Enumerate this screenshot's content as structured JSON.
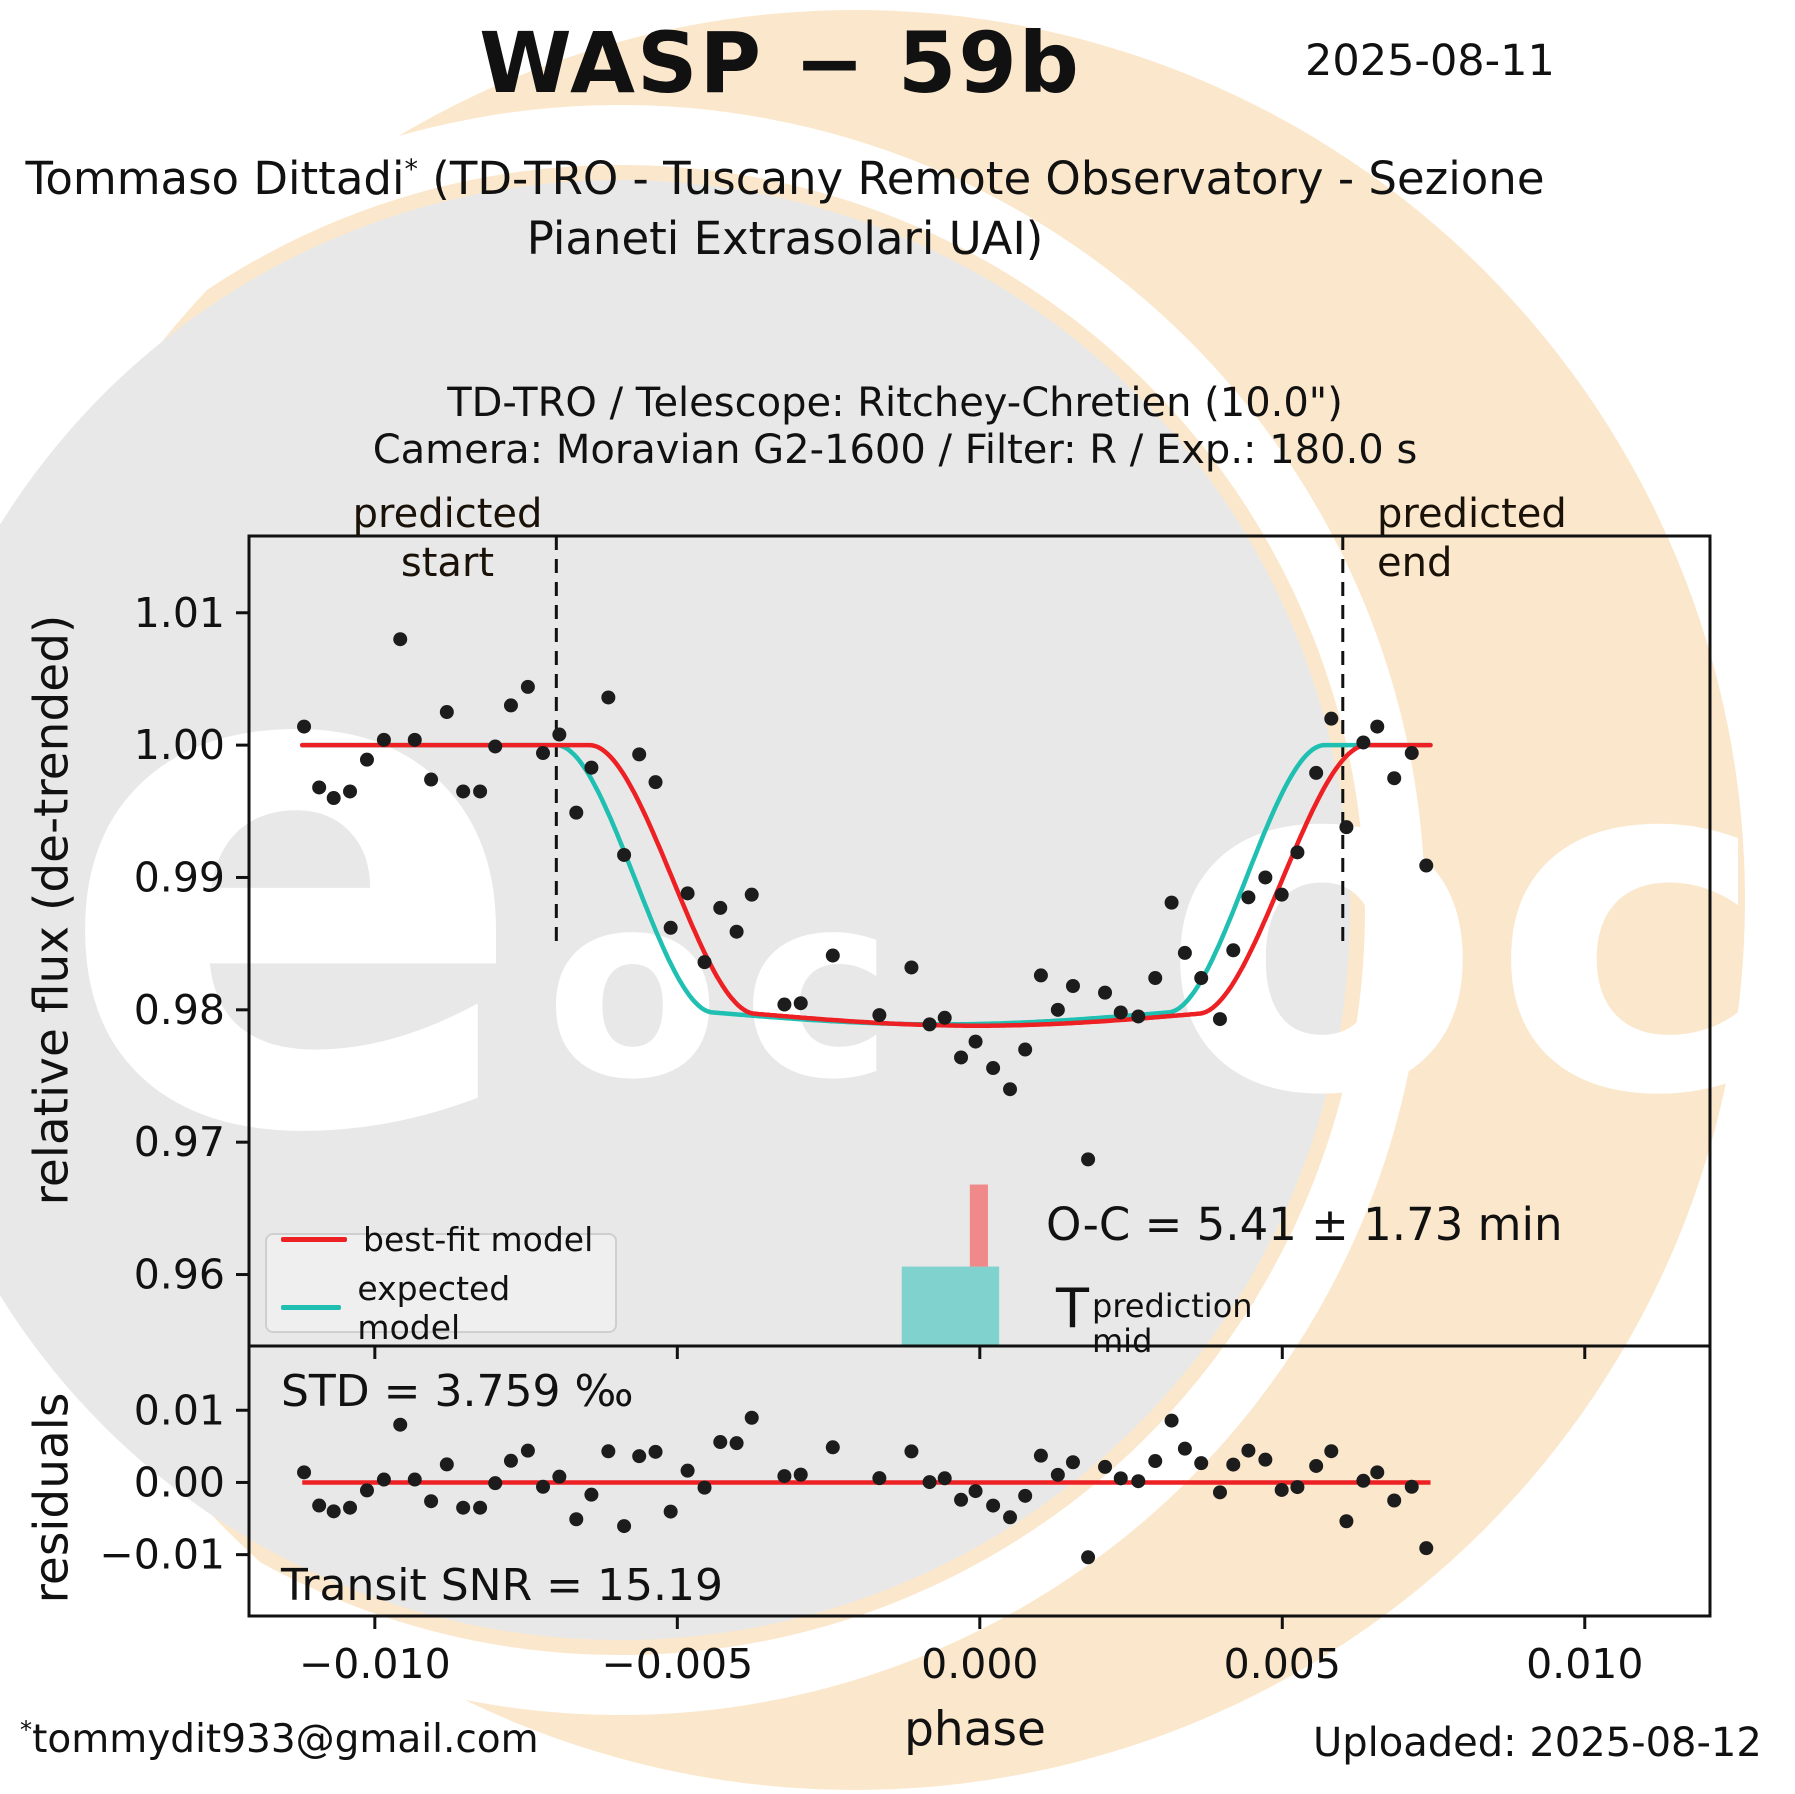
{
  "header": {
    "title": "WASP − 59b",
    "date": "2025-08-11",
    "author_name": "Tommaso Dittadi",
    "author_star": "*",
    "author_rest": "(TD-TRO - Tuscany Remote Observatory - Sezione",
    "author_line2": "Pianeti Extrasolari UAI)"
  },
  "subtitle": {
    "line1": "TD-TRO / Telescope: Ritchey-Chretien (10.0\")",
    "line2": "Camera: Moravian G2-1600 / Filter: R / Exp.: 180.0 s"
  },
  "annotations": {
    "predicted_start_line1": "predicted",
    "predicted_start_line2": "start",
    "predicted_end_line1": "predicted",
    "predicted_end_line2": "end",
    "oc": "O-C = 5.41 ± 1.73 min",
    "tmid_base": "T",
    "tmid_sup": "prediction",
    "tmid_sub": "mid",
    "std": "STD = 3.759 ‰",
    "snr": "Transit SNR = 15.19"
  },
  "legend": [
    {
      "label": "best-fit model",
      "color": "#ed2024"
    },
    {
      "label": "expected model",
      "color": "#1fbfb2"
    }
  ],
  "watermark": {
    "left": "e",
    "mid": "oc",
    "right": "ock",
    "peach_color": "#fbe8cc",
    "gray_color": "#e8e8e8"
  },
  "footer": {
    "email_star": "*",
    "email": "tommydit933@gmail.com",
    "uploaded": "Uploaded: 2025-08-12"
  },
  "chart_data": {
    "type": "scatter",
    "title": "WASP − 59b transit light curve with best-fit and expected models plus residuals",
    "xlabel": "phase",
    "ylabel_main": "relative flux (de-trended)",
    "ylabel_residuals": "residuals",
    "xlim": [
      -0.01208,
      0.01207
    ],
    "ylim_main": [
      0.9546,
      1.0158
    ],
    "ylim_residuals": [
      -0.0185,
      0.0189
    ],
    "x_ticks": {
      "values": [
        -0.01,
        -0.005,
        0.0,
        0.005,
        0.01
      ],
      "labels": [
        "−0.010",
        "−0.005",
        "0.000",
        "0.005",
        "0.010"
      ]
    },
    "y_ticks_main": {
      "values": [
        1.01,
        1.0,
        0.99,
        0.98,
        0.97,
        0.96
      ],
      "labels": [
        "1.01",
        "1.00",
        "0.99",
        "0.98",
        "0.97",
        "0.96"
      ]
    },
    "y_ticks_residuals": {
      "values": [
        0.01,
        0.0,
        -0.01
      ],
      "labels": [
        "0.01",
        "0.00",
        "−0.01"
      ]
    },
    "predicted_start_phase": -0.007,
    "predicted_end_phase": 0.006,
    "curve_phase_range": [
      -0.0112,
      0.00745
    ],
    "grid": false,
    "legend_position": "lower left",
    "models": {
      "best_fit": {
        "c1": -0.00645,
        "c2": -0.0037,
        "c3": 0.0036,
        "c4": 0.0064,
        "depth": 0.0203,
        "round": 0.0009,
        "color": "#ed2024"
      },
      "expected": {
        "c1": -0.007,
        "c2": -0.0044,
        "c3": 0.0031,
        "c4": 0.0057,
        "depth": 0.0202,
        "round": 0.0009,
        "color": "#1fbfb2"
      }
    },
    "scatter": [
      [
        -0.01117,
        1.0014
      ],
      [
        -0.01092,
        0.9968
      ],
      [
        -0.01068,
        0.996
      ],
      [
        -0.01041,
        0.9965
      ],
      [
        -0.01013,
        0.9989
      ],
      [
        -0.00985,
        1.0004
      ],
      [
        -0.00958,
        1.008
      ],
      [
        -0.00934,
        1.0004
      ],
      [
        -0.00907,
        0.9974
      ],
      [
        -0.00881,
        1.0025
      ],
      [
        -0.00854,
        0.9965
      ],
      [
        -0.00826,
        0.9965
      ],
      [
        -0.00801,
        0.9999
      ],
      [
        -0.00775,
        1.003
      ],
      [
        -0.00747,
        1.0044
      ],
      [
        -0.00722,
        0.9994
      ],
      [
        -0.00695,
        1.0008
      ],
      [
        -0.00667,
        0.9949
      ],
      [
        -0.00642,
        0.9983
      ],
      [
        -0.00614,
        1.0036
      ],
      [
        -0.00588,
        0.9917
      ],
      [
        -0.00563,
        0.9993
      ],
      [
        -0.00536,
        0.9972
      ],
      [
        -0.00511,
        0.9862
      ],
      [
        -0.00483,
        0.9888
      ],
      [
        -0.00455,
        0.9836
      ],
      [
        -0.00429,
        0.9877
      ],
      [
        -0.00402,
        0.9859
      ],
      [
        -0.00377,
        0.9887
      ],
      [
        -0.00323,
        0.9804
      ],
      [
        -0.00296,
        0.9805
      ],
      [
        -0.00243,
        0.9841
      ],
      [
        -0.00166,
        0.9796
      ],
      [
        -0.00113,
        0.9832
      ],
      [
        -0.00083,
        0.9789
      ],
      [
        -0.00058,
        0.9794
      ],
      [
        -0.00031,
        0.9764
      ],
      [
        -7e-05,
        0.9776
      ],
      [
        0.00022,
        0.9756
      ],
      [
        0.0005,
        0.974
      ],
      [
        0.00075,
        0.977
      ],
      [
        0.00101,
        0.9826
      ],
      [
        0.00129,
        0.98
      ],
      [
        0.00154,
        0.9818
      ],
      [
        0.00179,
        0.9687
      ],
      [
        0.00207,
        0.9813
      ],
      [
        0.00233,
        0.9798
      ],
      [
        0.00262,
        0.9795
      ],
      [
        0.0029,
        0.9824
      ],
      [
        0.00317,
        0.9881
      ],
      [
        0.00339,
        0.9843
      ],
      [
        0.00366,
        0.9824
      ],
      [
        0.00397,
        0.9793
      ],
      [
        0.00419,
        0.9845
      ],
      [
        0.00444,
        0.9885
      ],
      [
        0.00472,
        0.99
      ],
      [
        0.00499,
        0.9887
      ],
      [
        0.00525,
        0.9919
      ],
      [
        0.00556,
        0.9979
      ],
      [
        0.00581,
        1.002
      ],
      [
        0.00606,
        0.9938
      ],
      [
        0.00634,
        1.0002
      ],
      [
        0.00657,
        1.0014
      ],
      [
        0.00685,
        0.9975
      ],
      [
        0.00714,
        0.9994
      ],
      [
        0.00738,
        0.9909
      ]
    ],
    "residuals_rule": "flux_minus_best_fit_model",
    "residual_zero_line_color": "#ed2024",
    "point_color": "#1c1c1c",
    "tmid_marker": {
      "box_phase0": -0.00129,
      "box_phase1": 0.00032,
      "box_flux_top": 0.9606,
      "box_color": "#7fd2cd",
      "bar_phase0": -0.000165,
      "bar_phase1": 0.000135,
      "bar_flux_top": 0.9668,
      "bar_flux_bottom": 0.9606,
      "bar_color": "#f08a8a"
    },
    "spine_color": "#111111",
    "dashed_line_color": "#111111"
  }
}
